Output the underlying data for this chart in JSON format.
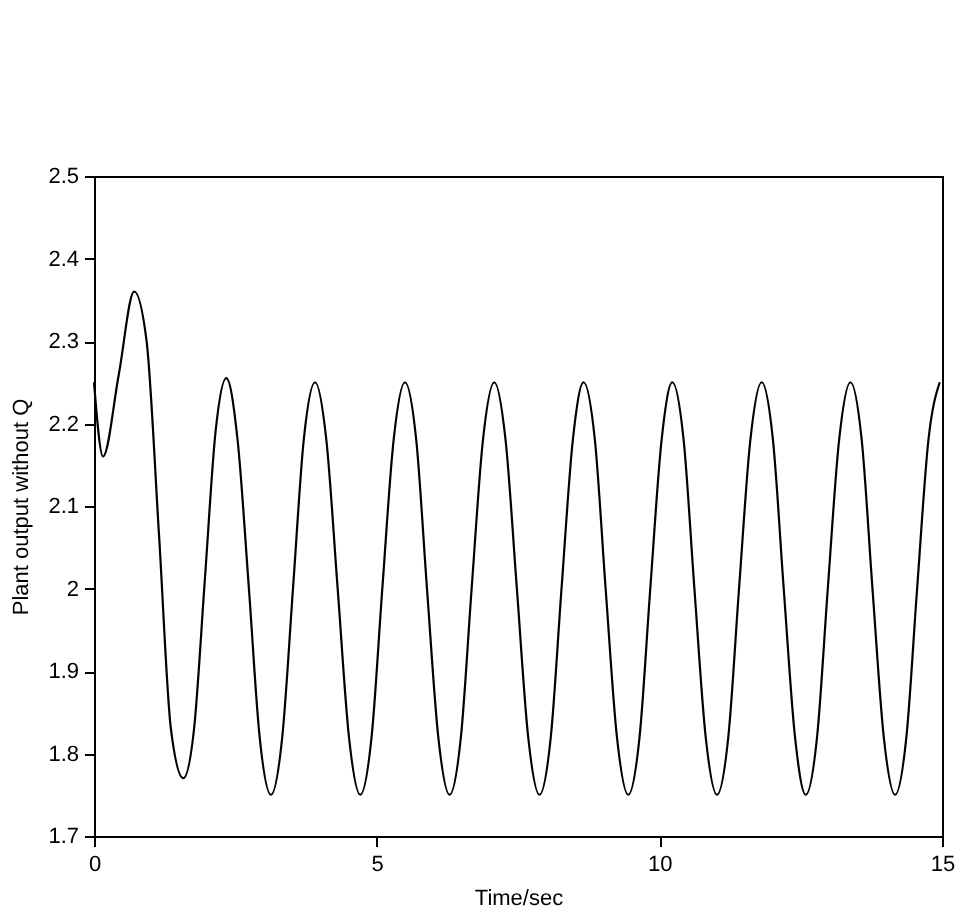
{
  "chart_data": {
    "type": "line",
    "xlabel": "Time/sec",
    "ylabel": "Plant output without Q",
    "x": [
      0,
      0.16,
      0.44,
      0.71,
      0.93,
      1.15,
      1.36,
      1.58,
      1.77,
      1.96,
      2.15,
      2.34,
      2.54,
      2.74,
      2.93,
      3.13,
      3.33,
      3.52,
      3.71,
      3.91,
      4.11,
      4.31,
      4.51,
      4.71,
      4.91,
      5.1,
      5.3,
      5.5,
      5.7,
      5.89,
      6.09,
      6.29,
      6.49,
      6.68,
      6.88,
      7.08,
      7.28,
      7.48,
      7.68,
      7.88,
      8.08,
      8.27,
      8.47,
      8.66,
      8.86,
      9.05,
      9.25,
      9.45,
      9.65,
      9.84,
      10.04,
      10.23,
      10.43,
      10.62,
      10.82,
      11.02,
      11.22,
      11.41,
      11.61,
      11.81,
      12.01,
      12.2,
      12.4,
      12.59,
      12.79,
      12.98,
      13.18,
      13.38,
      13.58,
      13.77,
      13.97,
      14.17,
      14.37,
      14.56,
      14.76,
      14.96
    ],
    "series": [
      {
        "color": "#000000",
        "values": [
          2.25,
          2.16,
          2.26,
          2.36,
          2.3,
          2.065,
          1.83,
          1.77,
          1.83,
          2.01,
          2.19,
          2.255,
          2.18,
          2.0,
          1.82,
          1.75,
          1.82,
          2.0,
          2.18,
          2.25,
          2.18,
          2.0,
          1.82,
          1.75,
          1.82,
          2.0,
          2.18,
          2.25,
          2.18,
          2.0,
          1.82,
          1.75,
          1.82,
          2.0,
          2.18,
          2.25,
          2.18,
          2.0,
          1.82,
          1.75,
          1.82,
          2.0,
          2.18,
          2.25,
          2.18,
          2.0,
          1.82,
          1.75,
          1.82,
          2.0,
          2.18,
          2.25,
          2.18,
          2.0,
          1.82,
          1.75,
          1.82,
          2.0,
          2.18,
          2.25,
          2.18,
          2.0,
          1.82,
          1.75,
          1.82,
          2.0,
          2.18,
          2.25,
          2.18,
          2.0,
          1.82,
          1.75,
          1.82,
          2.0,
          2.18,
          2.25
        ]
      }
    ],
    "xlim": [
      0,
      15
    ],
    "ylim": [
      1.7,
      2.5
    ],
    "xticks": [
      0,
      5,
      10,
      15
    ],
    "yticks": [
      1.7,
      1.8,
      1.9,
      2,
      2.1,
      2.2,
      2.3,
      2.4,
      2.5
    ],
    "grid": false
  }
}
